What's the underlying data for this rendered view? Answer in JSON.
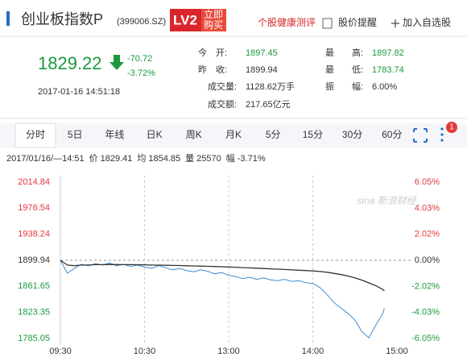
{
  "header": {
    "title": "创业板指数P",
    "code": "(399006.SZ)",
    "badge": "LV2",
    "buy_top": "立即",
    "buy_bottom": "购买",
    "links": [
      "个股健康测评",
      "股价提醒",
      "加入自选股"
    ]
  },
  "quote": {
    "price": 1829.22,
    "change": "-70.72",
    "change_pct": "-3.72%",
    "datetime": "2017-01-16 14:51:18",
    "stats": [
      {
        "label": "今　开:",
        "value": 1897.45,
        "color": "#1a9a3b"
      },
      {
        "label": "昨　收:",
        "value": 1899.94,
        "color": "#333333"
      },
      {
        "label": "成交量:",
        "value": "1128.62万手",
        "color": "#333333"
      },
      {
        "label": "成交额:",
        "value": "217.65亿元",
        "color": "#333333"
      },
      {
        "label": "最　　高:",
        "value": 1897.82,
        "color": "#1a9a3b"
      },
      {
        "label": "最　　低:",
        "value": 1783.74,
        "color": "#1a9a3b"
      },
      {
        "label": "振　　幅:",
        "value": "6.00%",
        "color": "#333333"
      }
    ]
  },
  "tabs": {
    "items": [
      "分时",
      "5日",
      "年线",
      "日K",
      "周K",
      "月K",
      "5分",
      "15分",
      "30分",
      "60分"
    ],
    "selected": 0,
    "badge": "1"
  },
  "info": [
    "2017/01/16/—14:51",
    "价",
    "1829.41",
    "均",
    "1854.85",
    "量",
    "25570",
    "幅",
    "-3.71%"
  ],
  "chart_data": {
    "type": "line",
    "watermark": "sina 新浪财经",
    "up_color": "#e4393c",
    "down_color": "#1a9a3b",
    "flat_color": "#333333",
    "x": [
      0,
      5,
      10,
      15,
      20,
      25,
      30,
      35,
      40,
      45,
      50,
      55,
      60,
      65,
      70,
      75,
      80,
      85,
      90,
      95,
      100,
      105,
      110,
      115,
      120,
      125,
      130,
      135,
      140,
      145,
      150,
      155,
      160,
      165,
      170,
      175,
      180,
      185,
      190,
      195,
      200,
      205,
      210,
      215,
      220,
      225,
      230,
      231
    ],
    "xlim": [
      0,
      240
    ],
    "xticks": [
      {
        "value": 0,
        "label": "09:30"
      },
      {
        "value": 60,
        "label": "10:30"
      },
      {
        "value": 120,
        "label": "13:00"
      },
      {
        "value": 180,
        "label": "14:00"
      },
      {
        "value": 240,
        "label": "15:00"
      }
    ],
    "ylim": [
      1785.05,
      2014.84
    ],
    "yticks": [
      2014.84,
      1976.54,
      1938.24,
      1899.94,
      1861.65,
      1823.35,
      1785.05
    ],
    "y2lim": [
      -6.05,
      6.05
    ],
    "y2ticks": [
      {
        "value": 6.05,
        "label": "6.05%"
      },
      {
        "value": 4.03,
        "label": "4.03%"
      },
      {
        "value": 2.02,
        "label": "2.02%"
      },
      {
        "value": 0,
        "label": "0.00%"
      },
      {
        "value": -2.02,
        "label": "-2.02%"
      },
      {
        "value": -4.03,
        "label": "-4.03%"
      },
      {
        "value": -6.05,
        "label": "-6.05%"
      }
    ],
    "series": [
      {
        "name": "价",
        "color": "#3a8fd6",
        "values": [
          1899.9,
          1881,
          1888,
          1894,
          1892,
          1895,
          1893,
          1896,
          1892,
          1894,
          1891,
          1893,
          1890,
          1888,
          1892,
          1889,
          1886,
          1888,
          1885,
          1883,
          1886,
          1884,
          1880,
          1882,
          1878,
          1876,
          1873,
          1875,
          1872,
          1874,
          1871,
          1870,
          1872,
          1869,
          1870,
          1867,
          1866,
          1860,
          1850,
          1838,
          1830,
          1822,
          1812,
          1795,
          1786,
          1805,
          1822,
          1829.41
        ]
      },
      {
        "name": "均",
        "color": "#333333",
        "values": [
          1899.9,
          1893,
          1892,
          1893,
          1893,
          1893.5,
          1893.6,
          1893.8,
          1893.7,
          1893.6,
          1893.5,
          1893.4,
          1893.2,
          1893.0,
          1892.8,
          1892.6,
          1892.4,
          1892.2,
          1891.9,
          1891.6,
          1891.4,
          1891.1,
          1890.8,
          1890.5,
          1890.1,
          1889.7,
          1889.2,
          1888.8,
          1888.3,
          1887.9,
          1887.4,
          1886.9,
          1886.4,
          1885.9,
          1885.4,
          1884.9,
          1884.3,
          1883.5,
          1882.4,
          1880.8,
          1879.0,
          1876.8,
          1874.2,
          1870.8,
          1866.8,
          1862.5,
          1857.0,
          1854.85
        ]
      }
    ]
  }
}
